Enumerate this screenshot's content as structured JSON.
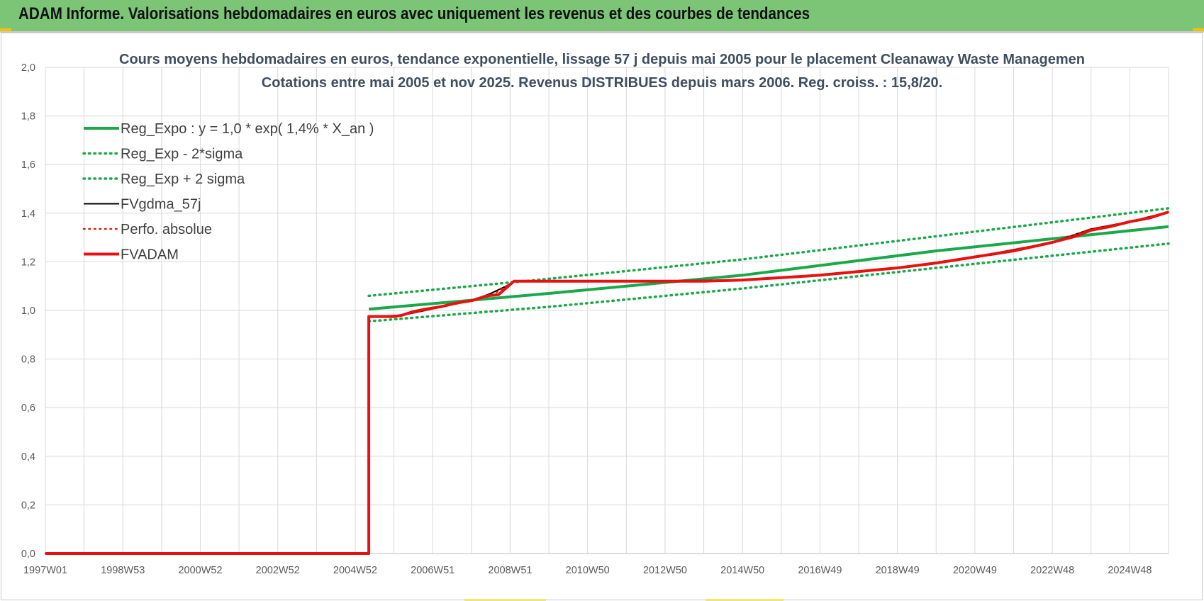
{
  "header": {
    "title": "ADAM Informe. Valorisations hebdomadaires en euros avec uniquement les revenus et des courbes de tendances"
  },
  "colors": {
    "banner": "#7cc576",
    "reg_green": "#1aa84a",
    "fvadam_red": "#e81111",
    "fvgdma_black": "#000000",
    "grid": "#d9d9d9"
  },
  "chart_data": {
    "type": "line",
    "title": "Cours moyens hebdomadaires en euros, tendance exponentielle, lissage 57 j depuis mai 2005 pour le placement Cleanaway Waste Managemen",
    "subtitle": "Cotations entre mai 2005 et nov 2025. Revenus DISTRIBUES depuis mars 2006. Reg. croiss. : 15,8/20.",
    "xlabel": "",
    "ylabel": "",
    "ylim": [
      0,
      2
    ],
    "xlim": [
      1997.0,
      2026.0
    ],
    "grid": true,
    "legend_position": "top-left",
    "x_ticks": [
      {
        "x": 1997.0,
        "label": "1997W01"
      },
      {
        "x": 1999.0,
        "label": "1998W53"
      },
      {
        "x": 2001.0,
        "label": "2000W52"
      },
      {
        "x": 2003.0,
        "label": "2002W52"
      },
      {
        "x": 2005.0,
        "label": "2004W52"
      },
      {
        "x": 2007.0,
        "label": "2006W51"
      },
      {
        "x": 2009.0,
        "label": "2008W51"
      },
      {
        "x": 2011.0,
        "label": "2010W50"
      },
      {
        "x": 2013.0,
        "label": "2012W50"
      },
      {
        "x": 2015.0,
        "label": "2014W50"
      },
      {
        "x": 2017.0,
        "label": "2016W49"
      },
      {
        "x": 2019.0,
        "label": "2018W49"
      },
      {
        "x": 2021.0,
        "label": "2020W49"
      },
      {
        "x": 2023.0,
        "label": "2022W48"
      },
      {
        "x": 2025.0,
        "label": "2024W48"
      }
    ],
    "y_ticks": [
      {
        "y": 0.0,
        "label": "0,0"
      },
      {
        "y": 0.2,
        "label": "0,2"
      },
      {
        "y": 0.4,
        "label": "0,4"
      },
      {
        "y": 0.6,
        "label": "0,6"
      },
      {
        "y": 0.8,
        "label": "0,8"
      },
      {
        "y": 1.0,
        "label": "1,0"
      },
      {
        "y": 1.2,
        "label": "1,2"
      },
      {
        "y": 1.4,
        "label": "1,4"
      },
      {
        "y": 1.6,
        "label": "1,6"
      },
      {
        "y": 1.8,
        "label": "1,8"
      },
      {
        "y": 2.0,
        "label": "2,0"
      }
    ],
    "series": [
      {
        "name": "Reg_Expo : y = 1,0 * exp( 1,4% *  X_an )",
        "color": "#1aa84a",
        "style": "solid",
        "width": 4,
        "points": [
          [
            2005.35,
            1.005
          ],
          [
            2010.0,
            1.07
          ],
          [
            2015.0,
            1.145
          ],
          [
            2020.0,
            1.245
          ],
          [
            2026.0,
            1.345
          ]
        ]
      },
      {
        "name": "Reg_Exp - 2*sigma",
        "color": "#1aa84a",
        "style": "dotted",
        "width": 3.5,
        "points": [
          [
            2005.35,
            0.955
          ],
          [
            2010.0,
            1.015
          ],
          [
            2015.0,
            1.09
          ],
          [
            2020.0,
            1.175
          ],
          [
            2026.0,
            1.275
          ]
        ]
      },
      {
        "name": "Reg_Exp + 2 sigma",
        "color": "#1aa84a",
        "style": "dotted",
        "width": 3.5,
        "points": [
          [
            2005.35,
            1.06
          ],
          [
            2010.0,
            1.13
          ],
          [
            2015.0,
            1.21
          ],
          [
            2020.0,
            1.305
          ],
          [
            2026.0,
            1.42
          ]
        ]
      },
      {
        "name": "FVgdma_57j",
        "color": "#000000",
        "style": "solid",
        "width": 2,
        "points": [
          [
            1997.0,
            0.0
          ],
          [
            2005.35,
            0.0
          ],
          [
            2005.35,
            0.975
          ],
          [
            2006.2,
            0.98
          ],
          [
            2006.8,
            1.0
          ],
          [
            2007.4,
            1.02
          ],
          [
            2008.0,
            1.04
          ],
          [
            2008.5,
            1.07
          ],
          [
            2008.9,
            1.1
          ],
          [
            2009.1,
            1.12
          ],
          [
            2012.0,
            1.12
          ],
          [
            2015.0,
            1.125
          ],
          [
            2017.0,
            1.145
          ],
          [
            2019.0,
            1.175
          ],
          [
            2021.0,
            1.22
          ],
          [
            2023.0,
            1.28
          ],
          [
            2024.0,
            1.335
          ],
          [
            2025.0,
            1.365
          ],
          [
            2026.0,
            1.405
          ]
        ]
      },
      {
        "name": "Perfo. absolue",
        "color": "#e81111",
        "style": "dotted",
        "width": 2.5,
        "points": [
          [
            1997.0,
            0.0
          ],
          [
            2005.35,
            0.0
          ],
          [
            2005.35,
            0.975
          ],
          [
            2006.2,
            0.98
          ],
          [
            2006.8,
            1.0
          ],
          [
            2007.4,
            1.02
          ],
          [
            2008.0,
            1.04
          ],
          [
            2008.5,
            1.06
          ],
          [
            2009.1,
            1.12
          ],
          [
            2012.0,
            1.12
          ],
          [
            2015.0,
            1.125
          ],
          [
            2017.0,
            1.145
          ],
          [
            2019.0,
            1.175
          ],
          [
            2021.0,
            1.22
          ],
          [
            2023.0,
            1.28
          ],
          [
            2024.0,
            1.335
          ],
          [
            2025.0,
            1.365
          ],
          [
            2026.0,
            1.405
          ]
        ]
      },
      {
        "name": "FVADAM",
        "color": "#e81111",
        "style": "solid",
        "width": 4,
        "points": [
          [
            1997.0,
            0.0
          ],
          [
            2005.35,
            0.0
          ],
          [
            2005.35,
            0.975
          ],
          [
            2006.0,
            0.975
          ],
          [
            2006.2,
            0.98
          ],
          [
            2006.5,
            0.995
          ],
          [
            2006.8,
            1.005
          ],
          [
            2007.2,
            1.015
          ],
          [
            2007.6,
            1.03
          ],
          [
            2008.0,
            1.04
          ],
          [
            2008.4,
            1.06
          ],
          [
            2008.7,
            1.065
          ],
          [
            2009.1,
            1.12
          ],
          [
            2010.0,
            1.12
          ],
          [
            2012.0,
            1.12
          ],
          [
            2014.0,
            1.12
          ],
          [
            2015.0,
            1.125
          ],
          [
            2016.0,
            1.135
          ],
          [
            2017.0,
            1.145
          ],
          [
            2018.0,
            1.16
          ],
          [
            2019.0,
            1.175
          ],
          [
            2020.0,
            1.195
          ],
          [
            2021.0,
            1.22
          ],
          [
            2022.0,
            1.245
          ],
          [
            2023.0,
            1.28
          ],
          [
            2023.6,
            1.305
          ],
          [
            2024.0,
            1.33
          ],
          [
            2024.5,
            1.345
          ],
          [
            2025.0,
            1.365
          ],
          [
            2025.5,
            1.38
          ],
          [
            2026.0,
            1.405
          ]
        ]
      }
    ]
  }
}
